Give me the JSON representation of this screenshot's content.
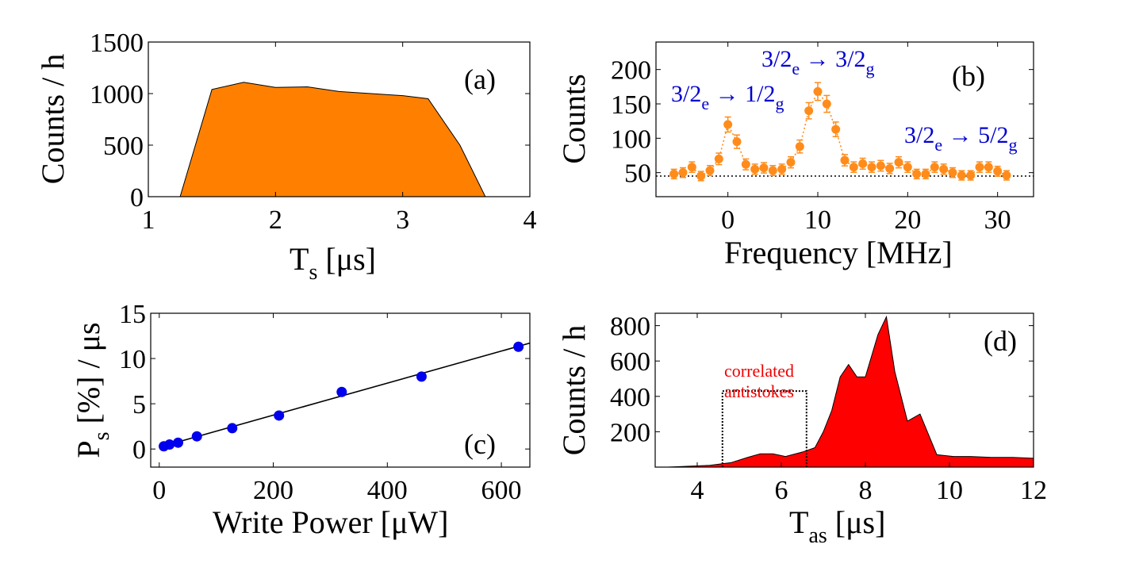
{
  "chart_data": [
    {
      "id": "a",
      "type": "area",
      "panel_label": "(a)",
      "xlabel": "T",
      "xlabel_sub": "s",
      "xlabel_unit": " [μs]",
      "ylabel": "Counts / h",
      "xlim": [
        1,
        4
      ],
      "ylim": [
        0,
        1500
      ],
      "xticks": [
        1,
        2,
        3,
        4
      ],
      "yticks": [
        0,
        500,
        1000,
        1500
      ],
      "color": "#ff8000",
      "x": [
        1.25,
        1.5,
        1.75,
        2.0,
        2.25,
        2.5,
        2.75,
        3.0,
        3.2,
        3.45,
        3.65
      ],
      "y": [
        0,
        1040,
        1110,
        1060,
        1065,
        1020,
        1000,
        980,
        950,
        500,
        0
      ]
    },
    {
      "id": "b",
      "type": "scatter",
      "panel_label": "(b)",
      "xlabel": "Frequency [MHz]",
      "ylabel": "Counts",
      "xlim": [
        -8,
        34
      ],
      "ylim": [
        15,
        240
      ],
      "xticks": [
        0,
        10,
        20,
        30
      ],
      "yticks": [
        50,
        100,
        150,
        200
      ],
      "color": "#ff8c1a",
      "baseline": 45,
      "x": [
        -6,
        -5,
        -4,
        -3,
        -2,
        -1,
        0,
        1,
        2,
        3,
        4,
        5,
        6,
        7,
        8,
        9,
        10,
        11,
        12,
        13,
        14,
        15,
        16,
        17,
        18,
        19,
        20,
        21,
        22,
        23,
        24,
        25,
        26,
        27,
        28,
        29,
        30,
        31
      ],
      "y": [
        48,
        50,
        58,
        45,
        53,
        70,
        120,
        95,
        62,
        55,
        57,
        53,
        55,
        65,
        88,
        140,
        168,
        150,
        113,
        68,
        58,
        63,
        58,
        60,
        56,
        65,
        58,
        48,
        48,
        58,
        55,
        50,
        46,
        46,
        58,
        58,
        52,
        46
      ],
      "annotations": [
        {
          "main": "3/2",
          "sub1": "e",
          "arrow": " → ",
          "main2": "1/2",
          "sub2": "g"
        },
        {
          "main": "3/2",
          "sub1": "e",
          "arrow": " → ",
          "main2": "3/2",
          "sub2": "g"
        },
        {
          "main": "3/2",
          "sub1": "e",
          "arrow": " → ",
          "main2": "5/2",
          "sub2": "g"
        }
      ]
    },
    {
      "id": "c",
      "type": "scatter",
      "panel_label": "(c)",
      "xlabel": "Write Power [μW]",
      "ylabel_main": "P",
      "ylabel_sub": "s",
      "ylabel_rest": " [%] / μs",
      "xlim": [
        -15,
        650
      ],
      "ylim": [
        -2,
        15
      ],
      "xticks": [
        0,
        200,
        400,
        600
      ],
      "yticks": [
        0,
        5,
        10,
        15
      ],
      "color": "#0000ee",
      "x": [
        8,
        18,
        33,
        66,
        128,
        210,
        320,
        460,
        630
      ],
      "y": [
        0.3,
        0.5,
        0.7,
        1.4,
        2.3,
        3.7,
        6.3,
        8.0,
        11.3
      ],
      "fit": {
        "slope": 0.0177,
        "intercept": 0.2
      }
    },
    {
      "id": "d",
      "type": "area",
      "panel_label": "(d)",
      "xlabel": "T",
      "xlabel_sub": "as",
      "xlabel_unit": " [μs]",
      "ylabel": "Counts / h",
      "xlim": [
        3,
        12
      ],
      "ylim": [
        0,
        870
      ],
      "xticks": [
        4,
        6,
        8,
        10,
        12
      ],
      "yticks": [
        200,
        400,
        600,
        800
      ],
      "color": "#ff0000",
      "x": [
        3.3,
        3.8,
        4.3,
        4.8,
        5.2,
        5.5,
        5.8,
        6.1,
        6.5,
        6.8,
        7.0,
        7.2,
        7.4,
        7.6,
        7.8,
        8.0,
        8.3,
        8.5,
        8.7,
        9.0,
        9.3,
        9.7,
        10.1,
        10.5,
        11.0,
        11.5,
        12.0
      ],
      "y": [
        0,
        5,
        10,
        25,
        55,
        75,
        75,
        60,
        85,
        110,
        200,
        320,
        510,
        580,
        510,
        510,
        750,
        850,
        540,
        260,
        300,
        70,
        60,
        60,
        55,
        55,
        50
      ],
      "window": {
        "x_start": 4.6,
        "x_end": 6.6,
        "y": 430
      },
      "annotation_line1": "correlated",
      "annotation_line2": "antistokes"
    }
  ]
}
